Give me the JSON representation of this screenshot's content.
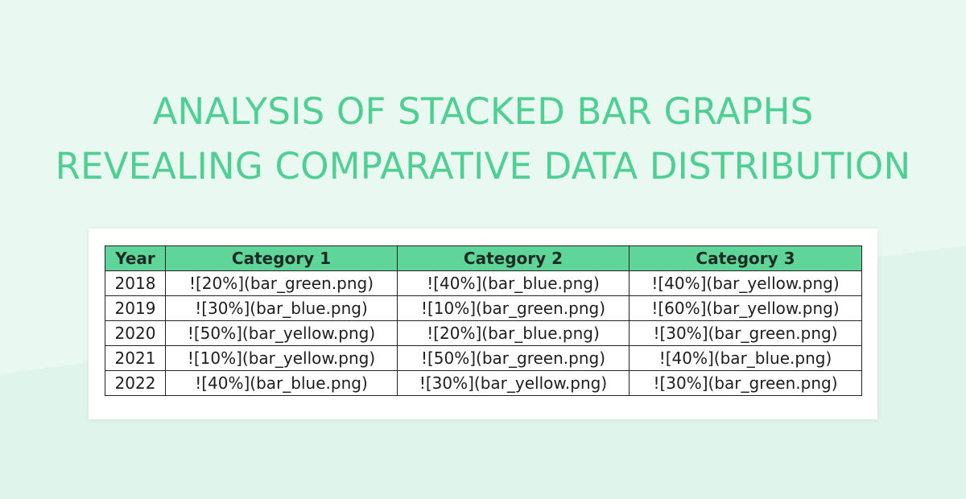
{
  "title": {
    "line1": "ANALYSIS OF STACKED BAR GRAPHS",
    "line2": "REVEALING COMPARATIVE DATA DISTRIBUTION"
  },
  "table": {
    "headers": [
      "Year",
      "Category 1",
      "Category 2",
      "Category 3"
    ],
    "rows": [
      [
        "2018",
        "![20%](bar_green.png)",
        "![40%](bar_blue.png)",
        "![40%](bar_yellow.png)"
      ],
      [
        "2019",
        "![30%](bar_blue.png)",
        "![10%](bar_green.png)",
        "![60%](bar_yellow.png)"
      ],
      [
        "2020",
        "![50%](bar_yellow.png)",
        "![20%](bar_blue.png)",
        "![30%](bar_green.png)"
      ],
      [
        "2021",
        "![10%](bar_yellow.png)",
        "![50%](bar_green.png)",
        "![40%](bar_blue.png)"
      ],
      [
        "2022",
        "![40%](bar_blue.png)",
        "![30%](bar_yellow.png)",
        "![30%](bar_green.png)"
      ]
    ]
  },
  "colors": {
    "background": "#e9f8f1",
    "title": "#4fcf94",
    "header_fill": "#5fd59a",
    "border": "#222222"
  }
}
